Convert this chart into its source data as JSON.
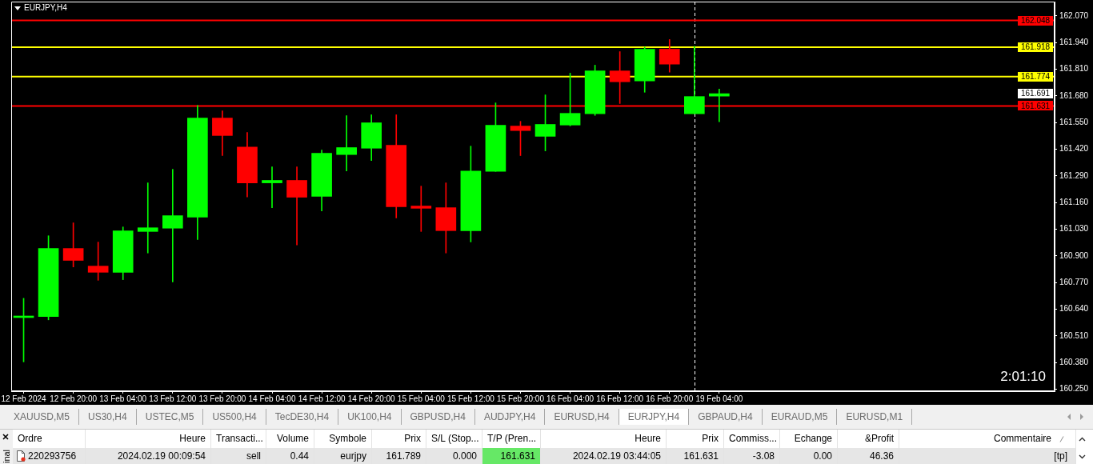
{
  "chart_data": [
    {
      "type": "candlestick",
      "title": "EURJPY,H4",
      "categories": [
        "12 Feb 2024",
        null,
        "12 Feb 20:00",
        null,
        "13 Feb 04:00",
        null,
        "13 Feb 12:00",
        null,
        "13 Feb 20:00",
        null,
        "14 Feb 04:00",
        null,
        "14 Feb 12:00",
        null,
        "14 Feb 20:00",
        null,
        "15 Feb 04:00",
        null,
        "15 Feb 12:00",
        null,
        "15 Feb 20:00",
        null,
        "16 Feb 04:00",
        null,
        "16 Feb 12:00",
        null,
        "16 Feb 20:00",
        null,
        "19 Feb 04:00",
        null,
        null,
        null,
        null,
        null,
        null,
        null,
        null,
        null,
        null,
        null,
        null,
        null
      ],
      "ohlc": [
        [
          160.599,
          160.693,
          160.383,
          160.603
        ],
        [
          160.604,
          160.998,
          160.588,
          160.936
        ],
        [
          160.936,
          161.061,
          160.846,
          160.878
        ],
        [
          160.85,
          160.967,
          160.781,
          160.82
        ],
        [
          160.82,
          161.041,
          160.784,
          161.022
        ],
        [
          161.019,
          161.256,
          160.914,
          161.037
        ],
        [
          161.035,
          161.322,
          160.773,
          161.096
        ],
        [
          161.089,
          161.633,
          160.98,
          161.572
        ],
        [
          161.572,
          161.607,
          161.389,
          161.487
        ],
        [
          161.431,
          161.502,
          161.187,
          161.256
        ],
        [
          161.256,
          161.334,
          161.135,
          161.268
        ],
        [
          161.268,
          161.334,
          160.953,
          161.186
        ],
        [
          161.19,
          161.416,
          161.119,
          161.4
        ],
        [
          161.394,
          161.584,
          161.314,
          161.428
        ],
        [
          161.425,
          161.588,
          161.365,
          161.549
        ],
        [
          161.439,
          161.588,
          161.085,
          161.14
        ],
        [
          161.143,
          161.24,
          161.019,
          161.132
        ],
        [
          161.135,
          161.256,
          160.914,
          161.023
        ],
        [
          161.023,
          161.435,
          160.968,
          161.314
        ],
        [
          161.312,
          161.646,
          161.312,
          161.537
        ],
        [
          161.533,
          161.556,
          161.389,
          161.511
        ],
        [
          161.483,
          161.685,
          161.412,
          161.541
        ],
        [
          161.538,
          161.791,
          161.534,
          161.595
        ],
        [
          161.593,
          161.83,
          161.585,
          161.802
        ],
        [
          161.802,
          161.896,
          161.643,
          161.749
        ],
        [
          161.753,
          161.918,
          161.698,
          161.908
        ],
        [
          161.908,
          161.955,
          161.796,
          161.835
        ],
        [
          161.593,
          161.922,
          161.593,
          161.677
        ],
        [
          161.679,
          161.713,
          161.554,
          161.691
        ],
        null,
        null,
        null,
        null,
        null,
        null,
        null,
        null,
        null,
        null,
        null,
        null,
        null
      ],
      "colors": [
        "#00ff00",
        "#00ff00",
        "#ff0000",
        "#ff0000",
        "#00ff00",
        "#00ff00",
        "#00ff00",
        "#00ff00",
        "#ff0000",
        "#ff0000",
        "#00ff00",
        "#ff0000",
        "#00ff00",
        "#00ff00",
        "#00ff00",
        "#ff0000",
        "#ff0000",
        "#ff0000",
        "#00ff00",
        "#00ff00",
        "#ff0000",
        "#00ff00",
        "#00ff00",
        "#00ff00",
        "#ff0000",
        "#00ff00",
        "#ff0000",
        "#00ff00",
        "#00ff00",
        null,
        null,
        null,
        null,
        null,
        null,
        null,
        null,
        null,
        null,
        null,
        null,
        null
      ],
      "ylim": [
        160.24,
        162.14
      ],
      "yticks": [
        {
          "value": 160.25,
          "label": "160.250"
        },
        {
          "value": 160.38,
          "label": "160.380"
        },
        {
          "value": 160.51,
          "label": "160.510"
        },
        {
          "value": 160.64,
          "label": "160.640"
        },
        {
          "value": 160.77,
          "label": "160.770"
        },
        {
          "value": 160.9,
          "label": "160.900"
        },
        {
          "value": 161.03,
          "label": "161.030"
        },
        {
          "value": 161.16,
          "label": "161.160"
        },
        {
          "value": 161.29,
          "label": "161.290"
        },
        {
          "value": 161.42,
          "label": "161.420"
        },
        {
          "value": 161.55,
          "label": "161.550"
        },
        {
          "value": 161.68,
          "label": "161.680"
        },
        {
          "value": 161.81,
          "label": "161.810"
        },
        {
          "value": 161.94,
          "label": "161.940"
        },
        {
          "value": 162.07,
          "label": "162.070"
        }
      ],
      "ref_lines": [
        {
          "axis": "y",
          "value": 162.048,
          "label": "162.048",
          "color": "#ff0000"
        },
        {
          "axis": "y",
          "value": 161.918,
          "label": "161.918",
          "color": "#ffff00"
        },
        {
          "axis": "y",
          "value": 161.774,
          "label": "161.774",
          "color": "#ffff00"
        },
        {
          "axis": "y",
          "value": 161.631,
          "label": "161.631",
          "color": "#ff0000"
        }
      ],
      "annotations": [
        "2:01:10",
        "161.691"
      ]
    },
    {
      "type": "other",
      "categories": [
        "XAUUSD,M5",
        "US30,H4",
        "USTEC,M5",
        "US500,H4",
        "TecDE30,H4",
        "UK100,H4",
        "GBPUSD,H4",
        "AUDJPY,H4",
        "EURUSD,H4",
        "EURJPY,H4",
        "GBPAUD,H4",
        "EURAUD,M5",
        "EURUSD,M1"
      ],
      "colors": [
        "#f0f0f0",
        "#f0f0f0",
        "#f0f0f0",
        "#f0f0f0",
        "#f0f0f0",
        "#f0f0f0",
        "#f0f0f0",
        "#f0f0f0",
        "#f0f0f0",
        "#ffffff",
        "#f0f0f0",
        "#f0f0f0",
        "#f0f0f0"
      ]
    },
    {
      "type": "other",
      "title": "inal",
      "categories": [
        "Ordre",
        "Heure",
        "Transacti...",
        "Volume",
        "Symbole",
        "Prix",
        "S/L (Stop...",
        "T/P (Pren...",
        "Heure",
        "Prix",
        "Commiss...",
        "Echange",
        "&Profit",
        "Commentaire"
      ],
      "cell_labels": [
        [
          "220293756",
          "2024.02.19 00:09:54",
          "sell",
          "0.44",
          "eurjpy",
          "161.789",
          "0.000",
          "161.631",
          "2024.02.19 03:44:05",
          "161.631",
          "-3.08",
          "0.00",
          "46.36",
          "[tp]"
        ]
      ]
    }
  ]
}
